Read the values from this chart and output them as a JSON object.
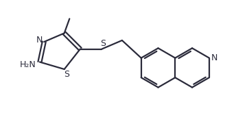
{
  "bg_color": "#ffffff",
  "line_color": "#2a2a3a",
  "line_width": 1.6,
  "font_size": 9,
  "figsize": [
    3.6,
    1.81
  ],
  "dpi": 100,
  "xlim": [
    0.0,
    7.2
  ],
  "ylim": [
    -0.5,
    3.8
  ]
}
